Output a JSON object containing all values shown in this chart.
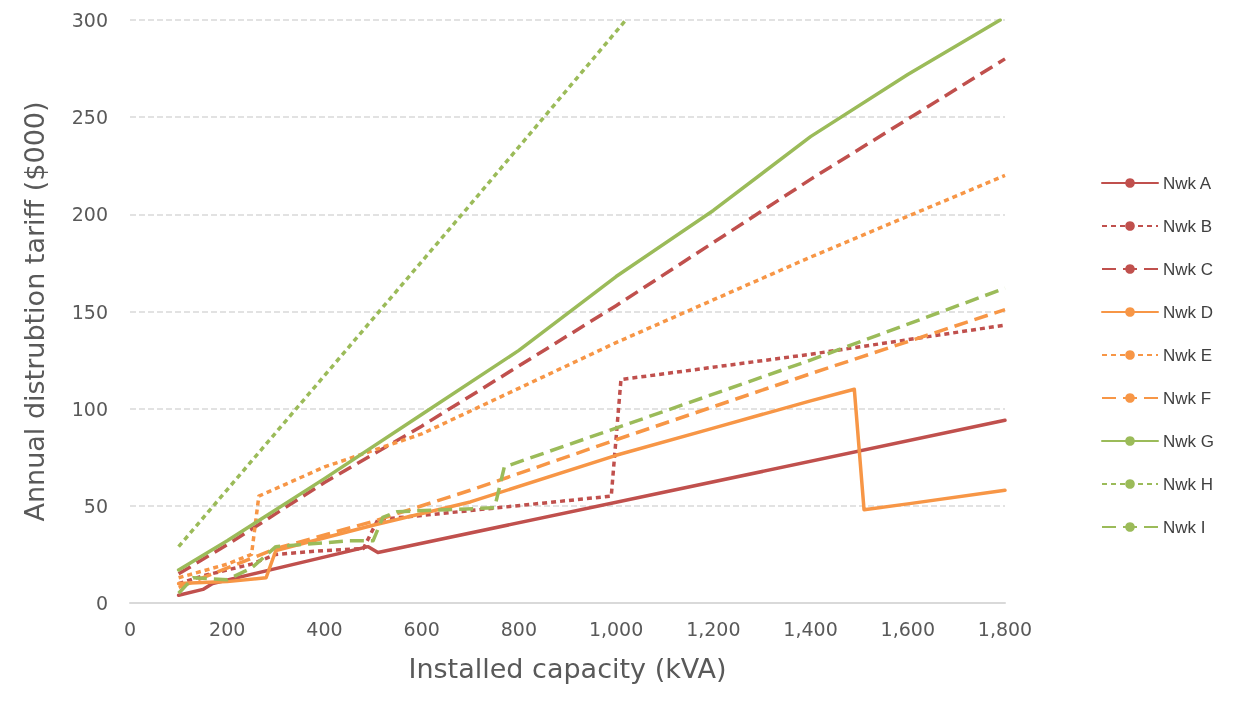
{
  "chart_data": {
    "type": "line",
    "xlabel": "Installed capacity (kVA)",
    "ylabel": "Annual distrubtion tariff ($000)",
    "xlim": [
      0,
      1800
    ],
    "xticks": [
      0,
      200,
      400,
      600,
      800,
      {
        "value": 1000,
        "label": "1,000"
      },
      {
        "value": 1200,
        "label": "1,200"
      },
      {
        "value": 1400,
        "label": "1,400"
      },
      {
        "value": 1600,
        "label": "1,600"
      },
      {
        "value": 1800,
        "label": "1,800"
      }
    ],
    "ylim": [
      0,
      300
    ],
    "yticks": [
      0,
      50,
      100,
      150,
      200,
      250,
      300
    ],
    "grid": "y",
    "legend": "right",
    "marker": "none",
    "series": [
      {
        "name": "Nwk A",
        "color": "#c0504d",
        "line_style": "solid",
        "x": [
          100,
          150,
          170,
          490,
          510,
          1800
        ],
        "values": [
          4,
          7,
          10,
          29,
          26,
          94
        ]
      },
      {
        "name": "Nwk B",
        "color": "#c0504d",
        "line_style": "dotted",
        "x": [
          100,
          150,
          250,
          300,
          400,
          480,
          510,
          600,
          990,
          1010,
          1100,
          1400,
          1800
        ],
        "values": [
          10,
          14,
          20,
          25,
          27,
          28,
          43,
          45,
          55,
          115,
          118,
          128,
          143
        ]
      },
      {
        "name": "Nwk C",
        "color": "#c0504d",
        "line_style": "dashed",
        "x": [
          100,
          200,
          400,
          600,
          1000,
          1400,
          1800
        ],
        "values": [
          15,
          30,
          62,
          91,
          153,
          218,
          280
        ]
      },
      {
        "name": "Nwk D",
        "color": "#f79646",
        "line_style": "solid",
        "x": [
          100,
          200,
          280,
          300,
          500,
          700,
          1000,
          1200,
          1400,
          1490,
          1510,
          1600,
          1800
        ],
        "values": [
          10,
          11,
          13,
          27,
          40,
          52,
          76,
          90,
          104,
          110,
          48,
          51,
          58
        ]
      },
      {
        "name": "Nwk E",
        "color": "#f79646",
        "line_style": "dotted",
        "x": [
          100,
          200,
          250,
          265,
          400,
          600,
          1000,
          1400,
          1800
        ],
        "values": [
          13,
          20,
          25,
          55,
          70,
          87,
          134,
          178,
          220
        ]
      },
      {
        "name": "Nwk F",
        "color": "#f79646",
        "line_style": "dashed",
        "x": [
          100,
          300,
          500,
          700,
          1000,
          1400,
          1800
        ],
        "values": [
          8,
          28,
          42,
          58,
          84,
          118,
          151
        ]
      },
      {
        "name": "Nwk G",
        "color": "#9bbb59",
        "line_style": "solid",
        "x": [
          100,
          200,
          400,
          600,
          800,
          1000,
          1200,
          1400,
          1600,
          1790
        ],
        "values": [
          17,
          32,
          64,
          97,
          130,
          168,
          202,
          240,
          272,
          300
        ]
      },
      {
        "name": "Nwk H",
        "color": "#9bbb59",
        "line_style": "dotted",
        "x": [
          100,
          400,
          700,
          1020
        ],
        "values": [
          29,
          117,
          205,
          300
        ]
      },
      {
        "name": "Nwk I",
        "color": "#9bbb59",
        "line_style": "dashed",
        "x": [
          100,
          130,
          200,
          250,
          300,
          450,
          500,
          520,
          550,
          750,
          770,
          1000,
          1400,
          1800
        ],
        "values": [
          5,
          13,
          12,
          18,
          29,
          32,
          32,
          44,
          47,
          49,
          70,
          90,
          125,
          162
        ]
      }
    ]
  }
}
